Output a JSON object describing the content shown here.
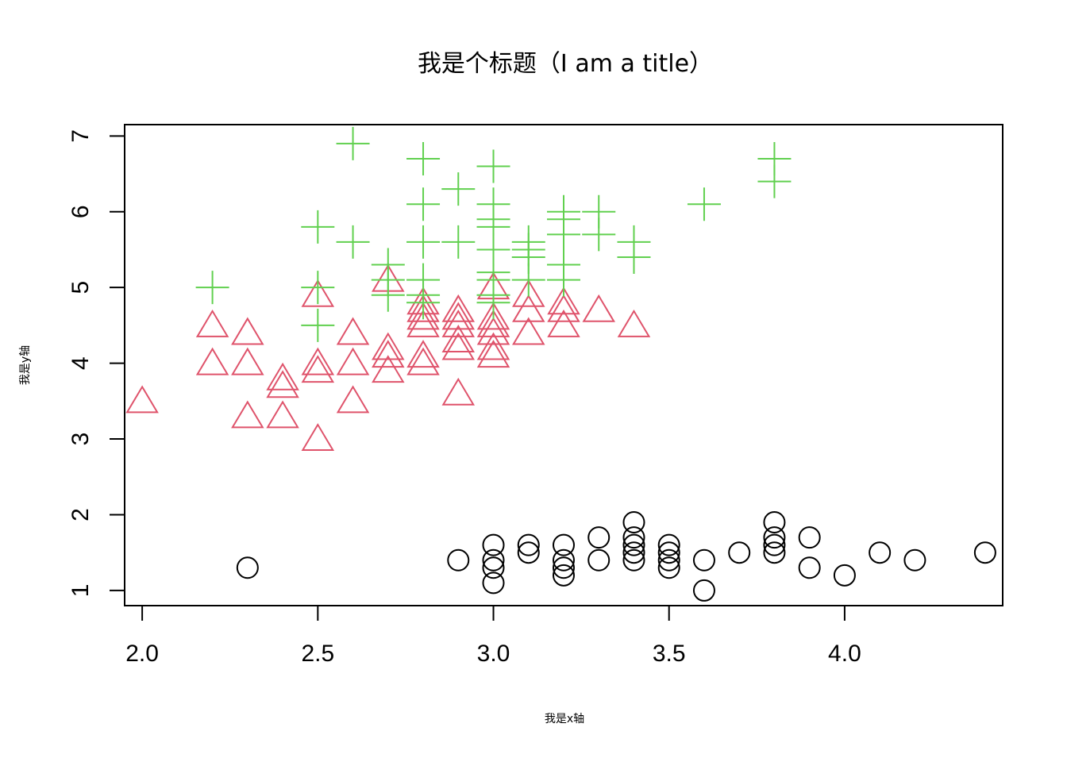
{
  "chart_data": {
    "type": "scatter",
    "title": "我是个标题（I am a title）",
    "xlabel": "我是x轴",
    "ylabel": "我是y轴",
    "xlim": [
      1.95,
      4.45
    ],
    "ylim": [
      0.8,
      7.15
    ],
    "xticks": [
      "2.0",
      "2.5",
      "3.0",
      "3.5",
      "4.0"
    ],
    "yticks": [
      "1",
      "2",
      "3",
      "4",
      "5",
      "6",
      "7"
    ],
    "grid": false,
    "legend": "none",
    "series": [
      {
        "marker": "circle",
        "color": "#000000",
        "points": [
          [
            2.3,
            1.3
          ],
          [
            2.9,
            1.4
          ],
          [
            3.0,
            1.6
          ],
          [
            3.0,
            1.4
          ],
          [
            3.0,
            1.3
          ],
          [
            3.0,
            1.1
          ],
          [
            3.1,
            1.6
          ],
          [
            3.1,
            1.5
          ],
          [
            3.2,
            1.6
          ],
          [
            3.2,
            1.4
          ],
          [
            3.2,
            1.3
          ],
          [
            3.2,
            1.2
          ],
          [
            3.3,
            1.7
          ],
          [
            3.3,
            1.4
          ],
          [
            3.4,
            1.9
          ],
          [
            3.4,
            1.7
          ],
          [
            3.4,
            1.6
          ],
          [
            3.4,
            1.5
          ],
          [
            3.4,
            1.4
          ],
          [
            3.5,
            1.6
          ],
          [
            3.5,
            1.5
          ],
          [
            3.5,
            1.4
          ],
          [
            3.5,
            1.3
          ],
          [
            3.6,
            1.4
          ],
          [
            3.6,
            1.0
          ],
          [
            3.7,
            1.5
          ],
          [
            3.8,
            1.9
          ],
          [
            3.8,
            1.7
          ],
          [
            3.8,
            1.6
          ],
          [
            3.8,
            1.5
          ],
          [
            3.9,
            1.7
          ],
          [
            3.9,
            1.3
          ],
          [
            4.0,
            1.2
          ],
          [
            4.1,
            1.5
          ],
          [
            4.2,
            1.4
          ],
          [
            4.4,
            1.5
          ]
        ]
      },
      {
        "marker": "triangle",
        "color": "#DF536B",
        "points": [
          [
            2.0,
            3.5
          ],
          [
            2.2,
            4.5
          ],
          [
            2.2,
            4.0
          ],
          [
            2.3,
            4.4
          ],
          [
            2.3,
            4.0
          ],
          [
            2.3,
            3.3
          ],
          [
            2.4,
            3.8
          ],
          [
            2.4,
            3.7
          ],
          [
            2.4,
            3.3
          ],
          [
            2.5,
            4.9
          ],
          [
            2.5,
            4.0
          ],
          [
            2.5,
            3.9
          ],
          [
            2.5,
            3.0
          ],
          [
            2.6,
            4.4
          ],
          [
            2.6,
            4.0
          ],
          [
            2.6,
            3.5
          ],
          [
            2.7,
            5.1
          ],
          [
            2.7,
            4.2
          ],
          [
            2.7,
            4.1
          ],
          [
            2.7,
            3.9
          ],
          [
            2.8,
            4.8
          ],
          [
            2.8,
            4.7
          ],
          [
            2.8,
            4.6
          ],
          [
            2.8,
            4.5
          ],
          [
            2.8,
            4.1
          ],
          [
            2.8,
            4.0
          ],
          [
            2.9,
            4.7
          ],
          [
            2.9,
            4.6
          ],
          [
            2.9,
            4.5
          ],
          [
            2.9,
            4.3
          ],
          [
            2.9,
            4.2
          ],
          [
            2.9,
            3.6
          ],
          [
            3.0,
            5.0
          ],
          [
            3.0,
            4.6
          ],
          [
            3.0,
            4.5
          ],
          [
            3.0,
            4.4
          ],
          [
            3.0,
            4.2
          ],
          [
            3.0,
            4.1
          ],
          [
            3.1,
            4.9
          ],
          [
            3.1,
            4.7
          ],
          [
            3.1,
            4.4
          ],
          [
            3.2,
            4.8
          ],
          [
            3.2,
            4.7
          ],
          [
            3.2,
            4.5
          ],
          [
            3.3,
            4.7
          ],
          [
            3.4,
            4.5
          ]
        ]
      },
      {
        "marker": "plus",
        "color": "#61D04F",
        "points": [
          [
            2.2,
            5.0
          ],
          [
            2.5,
            5.8
          ],
          [
            2.5,
            5.0
          ],
          [
            2.5,
            4.5
          ],
          [
            2.6,
            6.9
          ],
          [
            2.6,
            5.6
          ],
          [
            2.7,
            5.3
          ],
          [
            2.7,
            5.1
          ],
          [
            2.7,
            4.9
          ],
          [
            2.8,
            6.7
          ],
          [
            2.8,
            6.1
          ],
          [
            2.8,
            5.6
          ],
          [
            2.8,
            5.1
          ],
          [
            2.8,
            4.9
          ],
          [
            2.8,
            4.8
          ],
          [
            2.9,
            6.3
          ],
          [
            2.9,
            5.6
          ],
          [
            3.0,
            6.6
          ],
          [
            3.0,
            6.1
          ],
          [
            3.0,
            5.9
          ],
          [
            3.0,
            5.8
          ],
          [
            3.0,
            5.5
          ],
          [
            3.0,
            5.2
          ],
          [
            3.0,
            5.1
          ],
          [
            3.0,
            4.9
          ],
          [
            3.0,
            4.8
          ],
          [
            3.1,
            5.6
          ],
          [
            3.1,
            5.5
          ],
          [
            3.1,
            5.4
          ],
          [
            3.1,
            5.1
          ],
          [
            3.2,
            6.0
          ],
          [
            3.2,
            5.9
          ],
          [
            3.2,
            5.7
          ],
          [
            3.2,
            5.3
          ],
          [
            3.2,
            5.1
          ],
          [
            3.3,
            6.0
          ],
          [
            3.3,
            5.7
          ],
          [
            3.4,
            5.6
          ],
          [
            3.4,
            5.4
          ],
          [
            3.6,
            6.1
          ],
          [
            3.8,
            6.7
          ],
          [
            3.8,
            6.4
          ]
        ]
      }
    ]
  }
}
